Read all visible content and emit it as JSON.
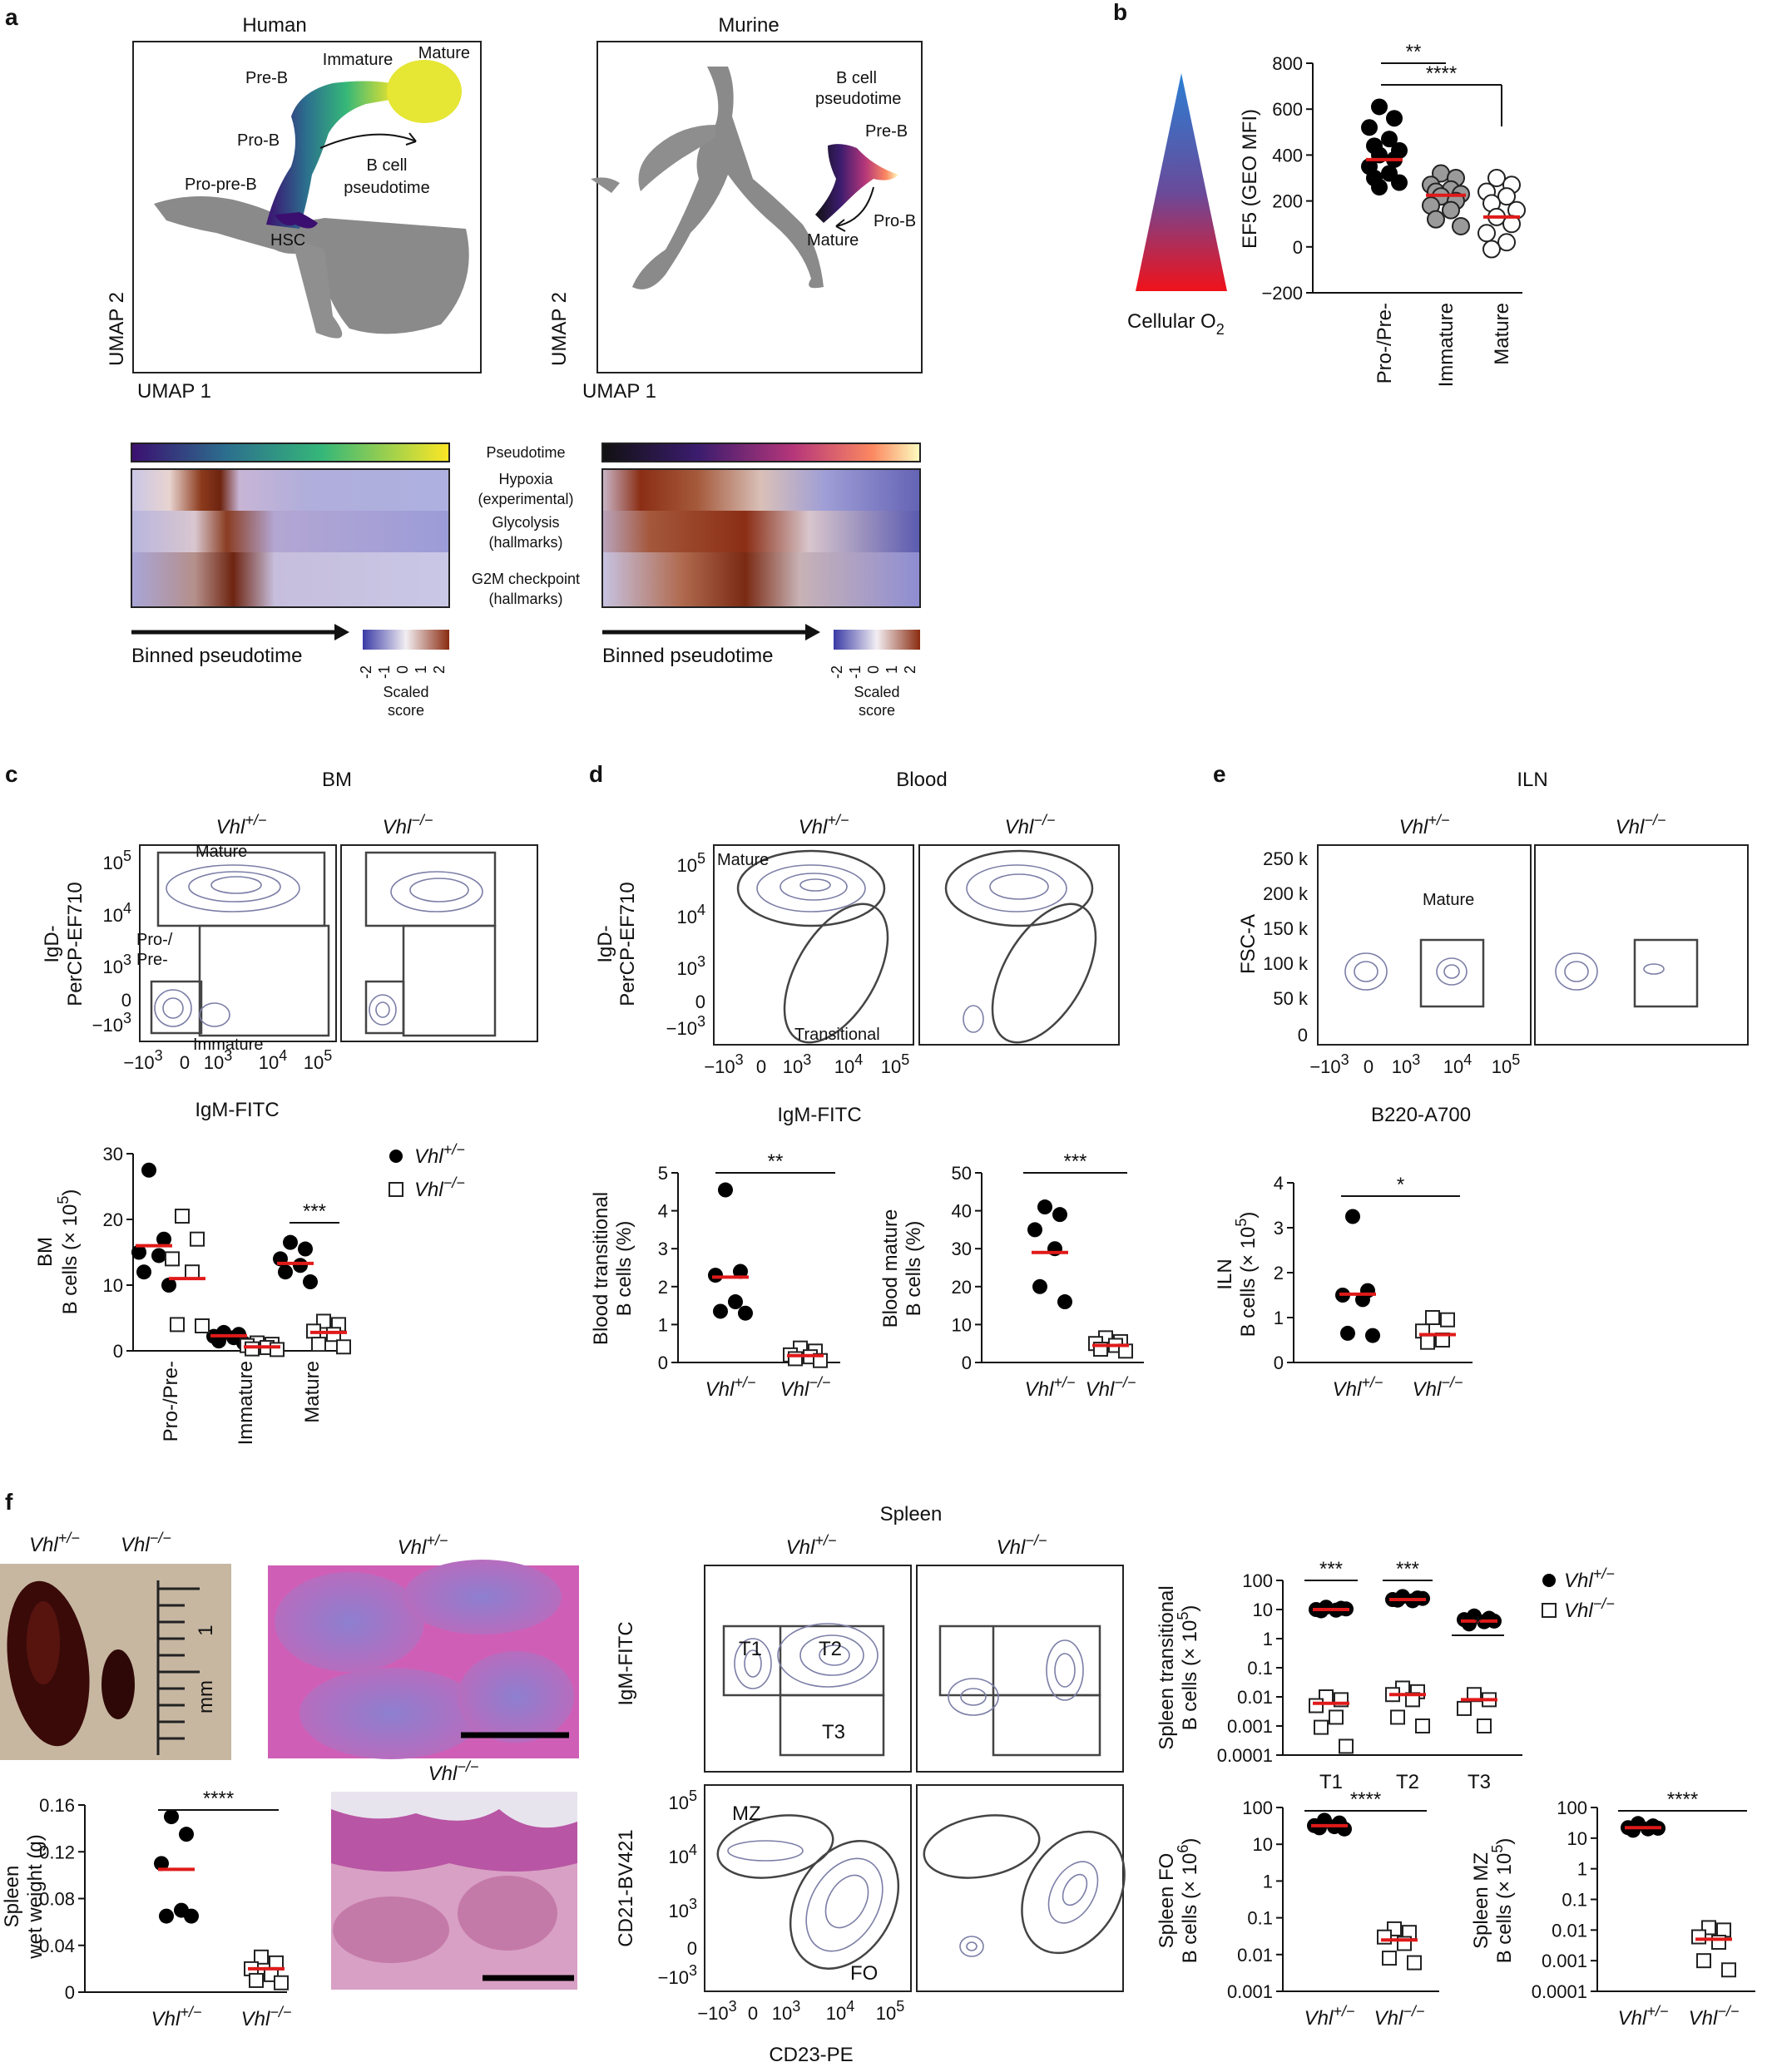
{
  "panels": {
    "a": {
      "label": "a",
      "human_title": "Human",
      "murine_title": "Murine",
      "human_labels": [
        "Mature",
        "Immature",
        "Pre-B",
        "Pro-B",
        "Pro-pre-B",
        "HSC",
        "B cell",
        "pseudotime"
      ],
      "murine_labels": [
        "B cell",
        "pseudotime",
        "Pre-B",
        "Pro-B",
        "Mature"
      ],
      "umap_x": "UMAP 1",
      "umap_y": "UMAP 2",
      "heat_rows": [
        "Pseudotime",
        "Hypoxia",
        "(experimental)",
        "Glycolysis",
        "(hallmarks)",
        "G2M checkpoint",
        "(hallmarks)"
      ],
      "binned": "Binned pseudotime",
      "scale_ticks": [
        "-2",
        "-1",
        "0",
        "1",
        "2"
      ],
      "scaled_score": [
        "Scaled",
        "score"
      ]
    },
    "b": {
      "label": "b",
      "o2_label": "Cellular O",
      "o2_sub": "2",
      "ylabel": "EF5 (GEO MFI)"
    },
    "c": {
      "label": "c",
      "title": "BM",
      "gate_labels": [
        "Mature",
        "Pro-/",
        "Pre-",
        "Immature"
      ],
      "xlabel": "IgM-FITC",
      "ylabel": [
        "IgD-",
        "PerCP-EF710"
      ]
    },
    "d": {
      "label": "d",
      "title": "Blood",
      "gate_labels": [
        "Mature",
        "Transitional"
      ],
      "xlabel": "IgM-FITC",
      "ylabel": [
        "IgD-",
        "PerCP-EF710"
      ]
    },
    "e": {
      "label": "e",
      "title": "ILN",
      "gate_labels": [
        "Mature"
      ],
      "xlabel": "B220-A700",
      "ylabel": "FSC-A"
    },
    "f": {
      "label": "f",
      "title": "Spleen",
      "gate_labels": [
        "T1",
        "T2",
        "T3",
        "MZ",
        "FO"
      ],
      "xlabel": "CD23-PE",
      "ylabel_top": "IgM-FITC",
      "ylabel_bottom": "CD21-BV421",
      "ruler": "mm",
      "ruler_num": "1"
    }
  },
  "genotypes": {
    "het": "Vhl",
    "het_sup": "+/−",
    "ko": "Vhl",
    "ko_sup": "−/−"
  },
  "colors": {
    "median": "#e01a1a",
    "contour": "#7b7ea6",
    "heat_hi": "#7a2a12",
    "heat_lo": "#4b4aa8"
  },
  "chart_data": [
    {
      "id": "b-ef5",
      "type": "scatter",
      "categories": [
        "Pro-/Pre-",
        "Immature",
        "Mature"
      ],
      "ylabel": "EF5 (GEO MFI)",
      "ylim": [
        -200,
        800
      ],
      "yticks": [
        -200,
        0,
        200,
        400,
        600,
        800
      ],
      "series": [
        {
          "values": [
            610,
            560,
            520,
            470,
            440,
            420,
            400,
            380,
            350,
            320,
            300,
            280,
            260
          ],
          "median": 380
        },
        {
          "values": [
            320,
            300,
            270,
            250,
            240,
            230,
            220,
            200,
            180,
            160,
            120,
            90
          ],
          "median": 225
        },
        {
          "values": [
            300,
            270,
            240,
            220,
            190,
            160,
            130,
            100,
            60,
            20,
            -10
          ],
          "median": 130
        }
      ],
      "significance": [
        "**",
        "****"
      ]
    },
    {
      "id": "c-bm",
      "type": "scatter",
      "categories": [
        "Pro-/Pre-",
        "Immature",
        "Mature"
      ],
      "ylabel": "B cells (× 10",
      "ylabel_sup": "5",
      "ylabel_pre": "BM",
      "ylim": [
        0,
        30
      ],
      "yticks": [
        0,
        10,
        20,
        30
      ],
      "series": [
        {
          "values": [
            27.5,
            17,
            15,
            14.5,
            12,
            10
          ],
          "median": 16
        },
        {
          "values": [
            2.8,
            2.5,
            2.2,
            2.0,
            1.5,
            1.2
          ],
          "median": 2.3
        },
        {
          "values": [
            16.5,
            15.5,
            14,
            13,
            12,
            10.5
          ],
          "median": 13.3
        }
      ],
      "series_ko": [
        {
          "values": [
            20.5,
            17,
            14,
            12,
            4,
            3.8
          ],
          "median": 11
        },
        {
          "values": [
            1.2,
            1.0,
            0.8,
            0.5,
            0.3,
            0.2
          ],
          "median": 0.6
        },
        {
          "values": [
            4.5,
            4.0,
            3.0,
            2.5,
            1.0,
            0.6
          ],
          "median": 2.8
        }
      ],
      "significance": [
        "***"
      ]
    },
    {
      "id": "d-transitional",
      "type": "scatter",
      "categories": [
        "Vhl +/−",
        "Vhl −/−"
      ],
      "ylabel": [
        "Blood transitional",
        "B cells (%)"
      ],
      "ylim": [
        0,
        5
      ],
      "yticks": [
        0,
        1,
        2,
        3,
        4,
        5
      ],
      "series": [
        {
          "values": [
            4.55,
            2.4,
            2.3,
            1.6,
            1.35,
            1.3
          ],
          "median": 2.25
        },
        {
          "values": [
            0.38,
            0.3,
            0.2,
            0.15,
            0.1,
            0.05
          ],
          "median": 0.18
        }
      ],
      "significance": [
        "**"
      ]
    },
    {
      "id": "d-mature",
      "type": "scatter",
      "categories": [
        "Vhl +/−",
        "Vhl −/−"
      ],
      "ylabel": [
        "Blood mature",
        "B cells (%)"
      ],
      "ylim": [
        0,
        50
      ],
      "yticks": [
        0,
        10,
        20,
        30,
        40,
        50
      ],
      "series": [
        {
          "values": [
            41,
            39,
            35,
            30,
            20,
            16
          ],
          "median": 29
        },
        {
          "values": [
            6.5,
            5.5,
            5,
            4.5,
            3.5,
            3
          ],
          "median": 4.5
        }
      ],
      "significance": [
        "***"
      ]
    },
    {
      "id": "e-iln",
      "type": "scatter",
      "categories": [
        "Vhl +/−",
        "Vhl −/−"
      ],
      "ylabel": "B cells (× 10",
      "ylabel_sup": "5",
      "ylabel_pre": "ILN",
      "ylim": [
        0,
        4
      ],
      "yticks": [
        0,
        1,
        2,
        3,
        4
      ],
      "series": [
        {
          "values": [
            3.25,
            1.6,
            1.5,
            1.4,
            0.65,
            0.6
          ],
          "median": 1.52
        },
        {
          "values": [
            1.0,
            0.95,
            0.7,
            0.5,
            0.45
          ],
          "median": 0.62
        }
      ],
      "significance": [
        "*"
      ]
    },
    {
      "id": "f-weight",
      "type": "scatter",
      "categories": [
        "Vhl +/−",
        "Vhl −/−"
      ],
      "ylabel": [
        "Spleen",
        "wet weight (g)"
      ],
      "ylim": [
        0,
        0.16
      ],
      "yticks": [
        "0",
        "0.04",
        "0.08",
        "0.12",
        "0.16"
      ],
      "series": [
        {
          "values": [
            0.15,
            0.135,
            0.11,
            0.07,
            0.065,
            0.065
          ],
          "median": 0.105
        },
        {
          "values": [
            0.03,
            0.025,
            0.02,
            0.015,
            0.01,
            0.008
          ],
          "median": 0.02
        }
      ],
      "significance": [
        "****"
      ]
    },
    {
      "id": "f-transitional",
      "type": "scatter",
      "log": true,
      "categories": [
        "T1",
        "T2",
        "T3"
      ],
      "ylabel": [
        "Spleen transitional",
        "B cells (× 10"
      ],
      "ylabel_sup": "5",
      "yticks": [
        "100",
        "10",
        "1",
        "0.1",
        "0.01",
        "0.001",
        "0.0001"
      ],
      "ylim": [
        0.0001,
        100
      ],
      "series": [
        {
          "values": [
            12,
            11,
            10,
            9.5,
            9,
            10.5
          ],
          "median": 10
        },
        {
          "values": [
            28,
            25,
            22,
            20,
            21,
            24
          ],
          "median": 22
        },
        {
          "values": [
            6,
            5,
            4.5,
            3.8,
            3.2,
            4.0
          ],
          "median": 4
        }
      ],
      "series_ko": [
        {
          "values": [
            0.01,
            0.008,
            0.005,
            0.002,
            0.0009,
            0.0002
          ],
          "median": 0.006
        },
        {
          "values": [
            0.02,
            0.015,
            0.012,
            0.008,
            0.002,
            0.001
          ],
          "median": 0.012
        },
        {
          "values": [
            0.012,
            0.008,
            0.004,
            0.001
          ],
          "median": 0.008
        }
      ],
      "significance": [
        "***",
        "***",
        "*"
      ]
    },
    {
      "id": "f-fo",
      "type": "scatter",
      "log": true,
      "categories": [
        "Vhl +/−",
        "Vhl −/−"
      ],
      "ylabel": [
        "Spleen FO",
        "B cells (× 10"
      ],
      "ylabel_sup": "6",
      "yticks": [
        "100",
        "10",
        "1",
        "0.1",
        "0.01",
        "0.001"
      ],
      "ylim": [
        0.001,
        100
      ],
      "series": [
        {
          "values": [
            45,
            38,
            32,
            30,
            28,
            26
          ],
          "median": 32
        },
        {
          "values": [
            0.05,
            0.04,
            0.03,
            0.02,
            0.008,
            0.006
          ],
          "median": 0.025
        }
      ],
      "significance": [
        "****"
      ]
    },
    {
      "id": "f-mz",
      "type": "scatter",
      "log": true,
      "categories": [
        "Vhl +/−",
        "Vhl −/−"
      ],
      "ylabel": [
        "Spleen MZ",
        "B cells (× 10"
      ],
      "ylabel_sup": "5",
      "yticks": [
        "100",
        "10",
        "1",
        "0.1",
        "0.01",
        "0.001",
        "0.0001"
      ],
      "ylim": [
        0.0001,
        100
      ],
      "series": [
        {
          "values": [
            30,
            25,
            22,
            20,
            18,
            21
          ],
          "median": 22
        },
        {
          "values": [
            0.012,
            0.01,
            0.006,
            0.004,
            0.001,
            0.0005
          ],
          "median": 0.005
        }
      ],
      "significance": [
        "****"
      ]
    }
  ]
}
